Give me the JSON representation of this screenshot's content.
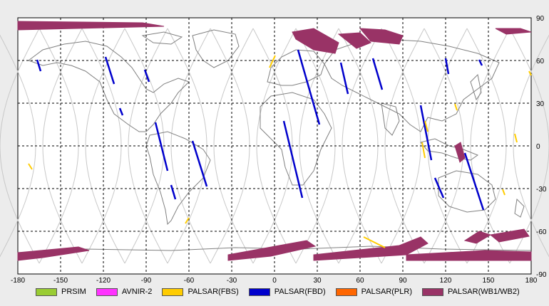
{
  "map": {
    "lon_ticks": [
      "-180",
      "-150",
      "-120",
      "-90",
      "-60",
      "-30",
      "0",
      "30",
      "60",
      "90",
      "120",
      "150",
      "180"
    ],
    "lat_ticks": [
      "90",
      "60",
      "30",
      "0",
      "-30",
      "-60",
      "-90"
    ]
  },
  "legend": [
    {
      "label": "PRSIM",
      "color": "#99cc33"
    },
    {
      "label": "AVNIR-2",
      "color": "#ff33ff"
    },
    {
      "label": "PALSAR(FBS)",
      "color": "#ffcc00"
    },
    {
      "label": "PALSAR(FBD)",
      "color": "#0000cc"
    },
    {
      "label": "PALSAR(PLR)",
      "color": "#ff6600"
    },
    {
      "label": "PALSAR(WB1/WB2)",
      "color": "#993366"
    }
  ],
  "colors": {
    "background": "#ffffff",
    "grid": "#000000",
    "orbit": "#c8c8c8",
    "coast": "#808080"
  }
}
